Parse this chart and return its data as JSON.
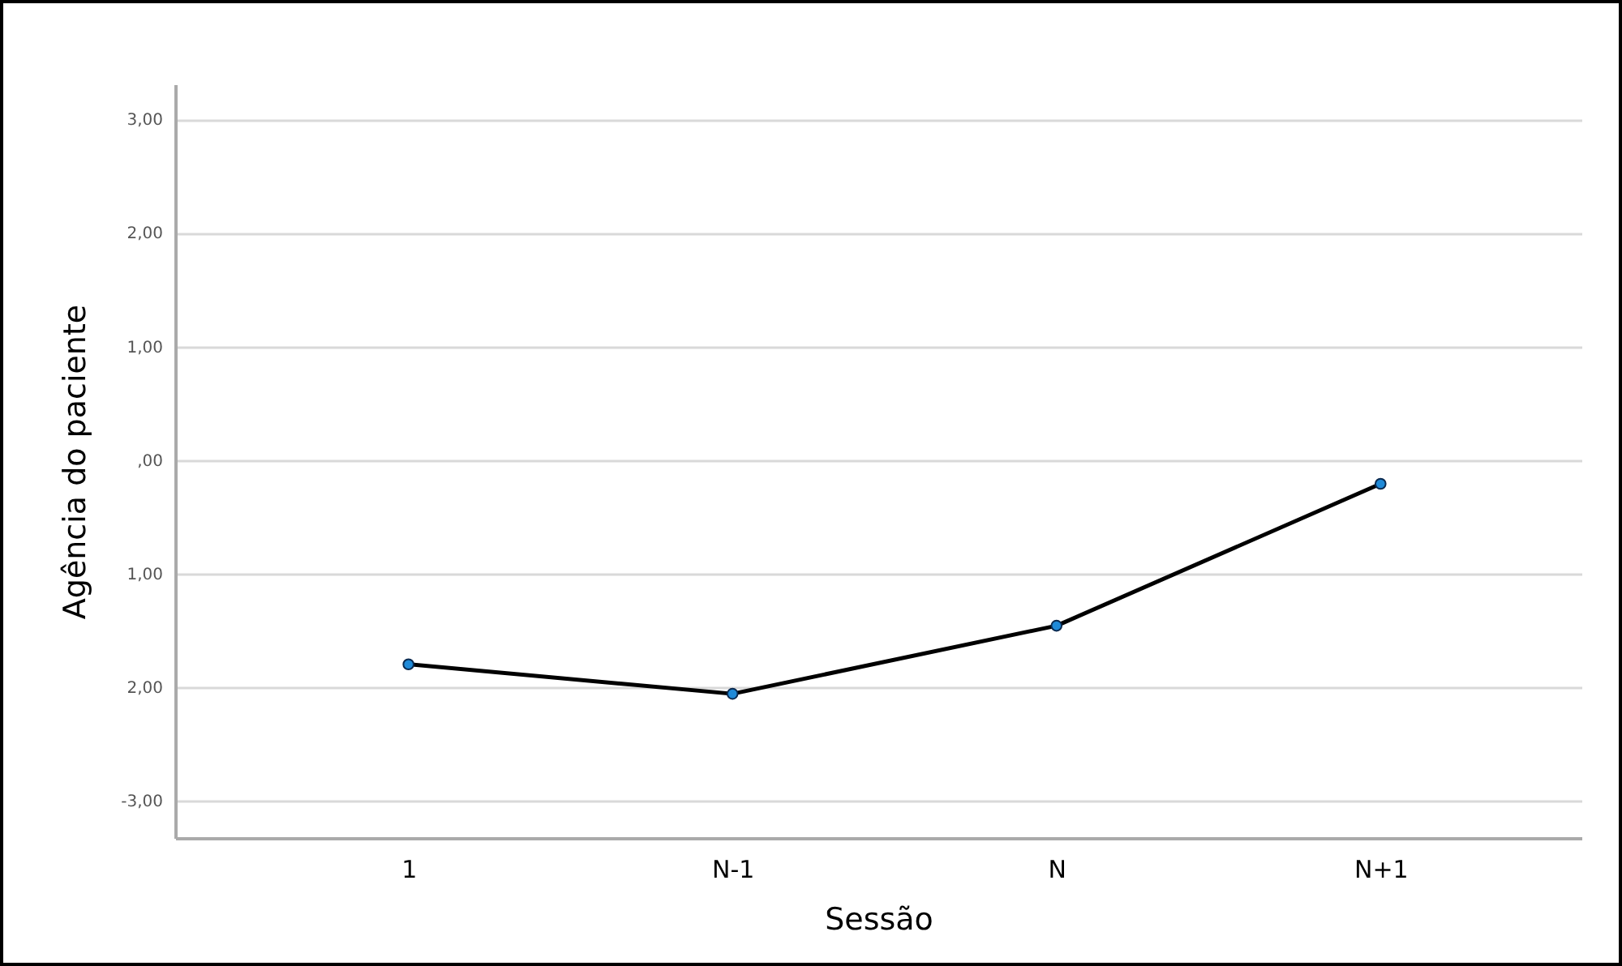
{
  "chart_data": {
    "type": "line",
    "xlabel": "Sessão",
    "ylabel": "Agência do paciente",
    "categories": [
      "1",
      "N-1",
      "N",
      "N+1"
    ],
    "series": [
      {
        "color": "#000000",
        "values": [
          -1.8,
          -2.06,
          -1.46,
          -0.21
        ]
      }
    ],
    "ylim": [
      -3.33,
      3.31
    ],
    "yticks": [
      {
        "value": 3,
        "label": "3,00"
      },
      {
        "value": 2,
        "label": "2,00"
      },
      {
        "value": 1,
        "label": "1,00"
      },
      {
        "value": 0,
        "label": ",00"
      },
      {
        "value": -1,
        "label": "1,00"
      },
      {
        "value": -2,
        "label": "2,00"
      },
      {
        "value": -3,
        "label": "-3,00"
      }
    ],
    "grid": "y",
    "marker": "circle",
    "line_style": "solid"
  }
}
